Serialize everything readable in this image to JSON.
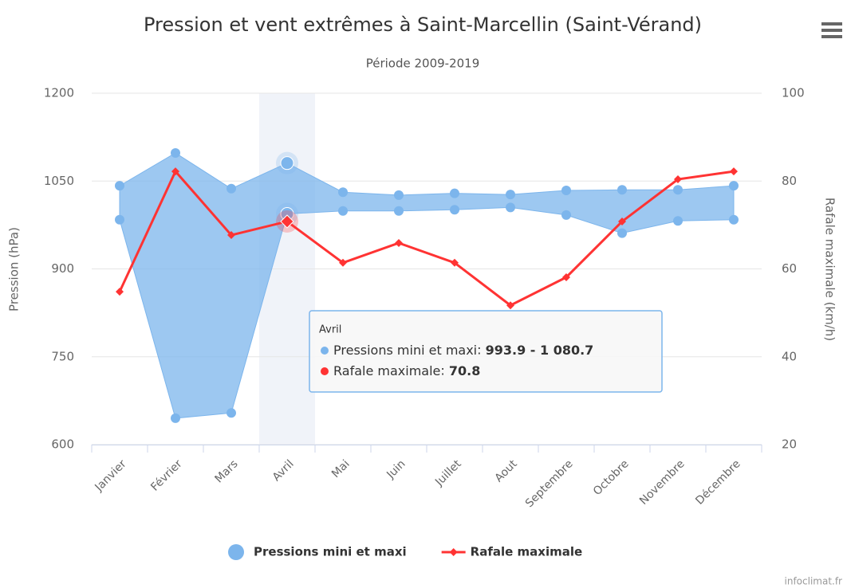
{
  "chart_data": {
    "type": "arearange-line",
    "title": "Pression et vent extrêmes à Saint-Marcellin (Saint-Vérand)",
    "subtitle": "Période 2009-2019",
    "ylabel": "Pression (hPa)",
    "y2label": "Rafale maximale (km/h)",
    "categories": [
      "Janvier",
      "Février",
      "Mars",
      "Avril",
      "Mai",
      "Juin",
      "Juillet",
      "Aout",
      "Septembre",
      "Octobre",
      "Novembre",
      "Décembre"
    ],
    "series": [
      {
        "name": "Pressions mini et maxi",
        "color": "#7cb5ec",
        "low": [
          984,
          645,
          654,
          993.9,
          999,
          999,
          1001,
          1005,
          992,
          961,
          982,
          984
        ],
        "high": [
          1042,
          1098,
          1037,
          1080.7,
          1031,
          1026,
          1029,
          1027,
          1034,
          1035,
          1035,
          1042
        ]
      },
      {
        "name": "Rafale maximale",
        "color": "#ff3333",
        "axis": "y2",
        "values": [
          54.8,
          82.2,
          67.7,
          70.8,
          61.4,
          65.9,
          61.4,
          51.7,
          58.1,
          70.8,
          80.4,
          82.2
        ]
      }
    ],
    "ylim": [
      600,
      1200
    ],
    "yticks": [
      600,
      750,
      900,
      1050,
      1200
    ],
    "y2lim": [
      20,
      100
    ],
    "y2ticks": [
      20,
      40,
      60,
      80,
      100
    ],
    "grid": true,
    "tooltip": {
      "category": "Avril",
      "lines": [
        {
          "name": "Pressions mini et maxi",
          "value": "993.9 - 1 080.7"
        },
        {
          "name": "Rafale maximale",
          "value": "70.8"
        }
      ]
    },
    "credits": "infoclimat.fr"
  }
}
